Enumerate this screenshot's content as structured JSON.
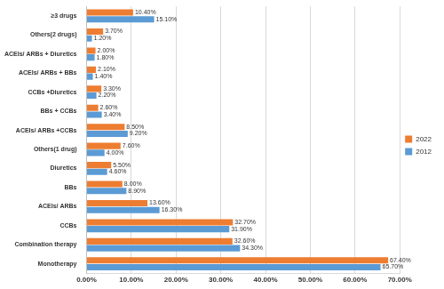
{
  "chart_data": {
    "type": "bar",
    "orientation": "horizontal",
    "categories": [
      "≥3 drugs",
      "Others(2 drugs)",
      "ACEIs/ ARBs + Diuretics",
      "ACEIs/ ARBs + BBs",
      "CCBs +Diuretics",
      "BBs + CCBs",
      "ACEIs/ ARBs +CCBs",
      "Others(1 drug)",
      "Diuretics",
      "BBs",
      "ACEIs/ ARBs",
      "CCBs",
      "Combination therapy",
      "Monotherapy"
    ],
    "series": [
      {
        "name": "2022",
        "color": "#ed7d31",
        "values": [
          10.4,
          3.7,
          2.0,
          2.1,
          3.3,
          2.6,
          8.5,
          7.6,
          5.5,
          8.0,
          13.6,
          32.7,
          32.6,
          67.4
        ],
        "value_labels": [
          "10.40%",
          "3.70%",
          "2.00%",
          "2.10%",
          "3.30%",
          "2.60%",
          "8.50%",
          "7.60%",
          "5.50%",
          "8.00%",
          "13.60%",
          "32.70%",
          "32.60%",
          "67.40%"
        ]
      },
      {
        "name": "2012",
        "color": "#5b9bd5",
        "values": [
          15.1,
          1.2,
          1.8,
          1.4,
          2.2,
          3.4,
          9.2,
          4.0,
          4.6,
          8.9,
          16.3,
          31.9,
          34.3,
          65.7
        ],
        "value_labels": [
          "15.10%",
          "1.20%",
          "1.80%",
          "1.40%",
          "2.20%",
          "3.40%",
          "9.20%",
          "4.00%",
          "4.60%",
          "8.90%",
          "16.30%",
          "31.90%",
          "34.30%",
          "65.70%"
        ]
      }
    ],
    "xlim": [
      0,
      70
    ],
    "xticks": [
      {
        "value": 0,
        "label": "0.00%"
      },
      {
        "value": 10,
        "label": "10.00%"
      },
      {
        "value": 20,
        "label": "20.00%"
      },
      {
        "value": 30,
        "label": "30.00%"
      },
      {
        "value": 40,
        "label": "40.00%"
      },
      {
        "value": 50,
        "label": "50.00%"
      },
      {
        "value": 60,
        "label": "60.00%"
      },
      {
        "value": 70,
        "label": "70.00%"
      }
    ],
    "grid": true,
    "legend": "right",
    "data_labels": true
  }
}
